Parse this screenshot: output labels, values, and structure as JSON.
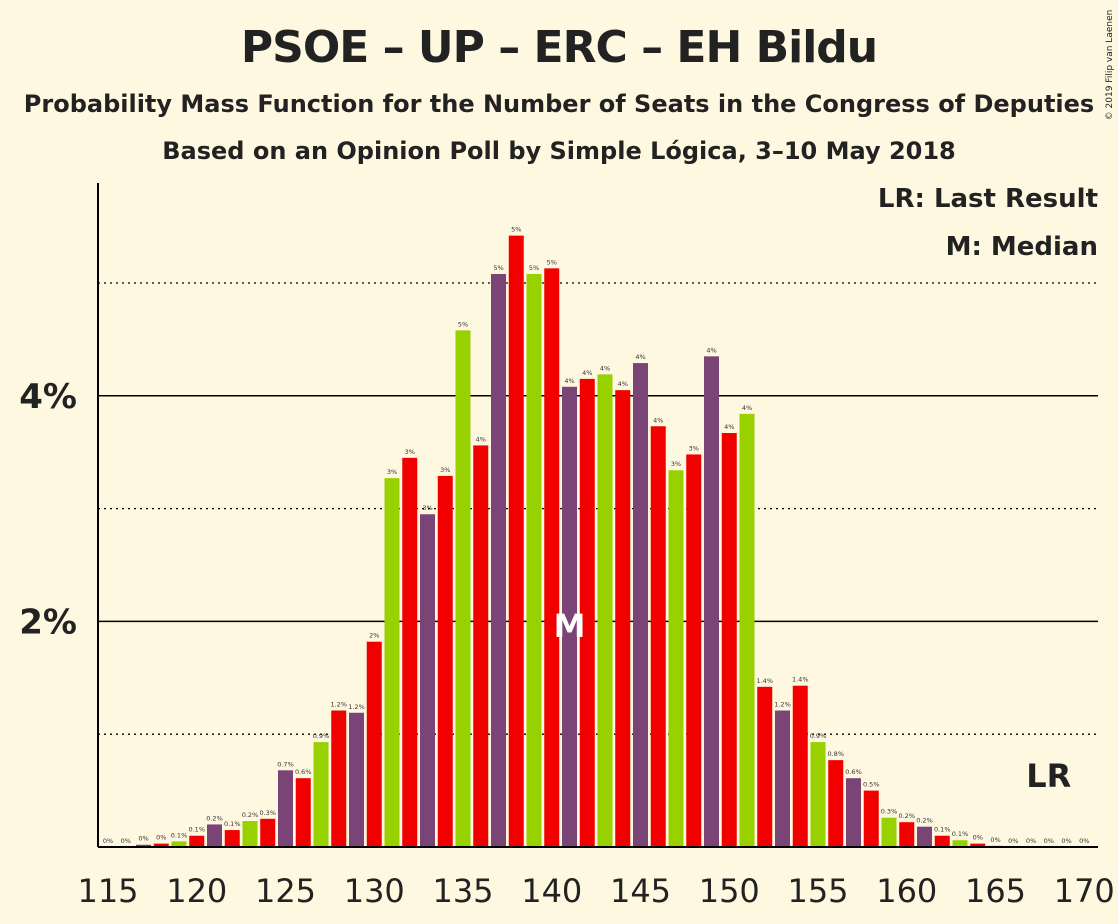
{
  "title": "PSOE – UP – ERC – EH Bildu",
  "subtitle": "Probability Mass Function for the Number of Seats in the Congress of Deputies",
  "subtitle2": "Based on an Opinion Poll by Simple Lógica, 3–10 May 2018",
  "copyright": "© 2019 Filip van Laenen",
  "legend": {
    "last_result": "LR: Last Result",
    "median": "M: Median"
  },
  "colors": {
    "background": "#FFF8E1",
    "purple": "#7A4477",
    "green": "#97D100",
    "red": "#F10000"
  },
  "chart_data": {
    "type": "bar",
    "x": [
      115,
      116,
      117,
      118,
      119,
      120,
      121,
      122,
      123,
      124,
      125,
      126,
      127,
      128,
      129,
      130,
      131,
      132,
      133,
      134,
      135,
      136,
      137,
      138,
      139,
      140,
      141,
      142,
      143,
      144,
      145,
      146,
      147,
      148,
      149,
      150,
      151,
      152,
      153,
      154,
      155,
      156,
      157,
      158,
      159,
      160,
      161,
      162,
      163,
      164,
      165,
      166,
      167,
      168,
      169,
      170
    ],
    "values": [
      0,
      0,
      0.02,
      0.03,
      0.05,
      0.1,
      0.2,
      0.15,
      0.23,
      0.25,
      0.68,
      0.61,
      0.93,
      1.21,
      1.19,
      1.82,
      3.27,
      3.45,
      2.95,
      3.29,
      4.58,
      3.56,
      5.08,
      5.42,
      5.08,
      5.13,
      4.08,
      4.15,
      4.19,
      4.05,
      4.29,
      3.73,
      3.34,
      3.48,
      4.35,
      3.67,
      3.84,
      1.42,
      1.21,
      1.43,
      0.93,
      0.77,
      0.61,
      0.5,
      0.26,
      0.22,
      0.18,
      0.1,
      0.06,
      0.03,
      0.01,
      0,
      0,
      0,
      0,
      0
    ],
    "labels": [
      "0%",
      "0%",
      "0%",
      "0%",
      "0.1%",
      "0.1%",
      "0.2%",
      "0.1%",
      "0.2%",
      "0.3%",
      "0.7%",
      "0.6%",
      "0.9%",
      "1.2%",
      "1.2%",
      "2%",
      "3%",
      "3%",
      "3%",
      "3%",
      "5%",
      "4%",
      "5%",
      "5%",
      "5%",
      "5%",
      "4%",
      "4%",
      "4%",
      "4%",
      "4%",
      "4%",
      "3%",
      "3%",
      "4%",
      "4%",
      "4%",
      "1.4%",
      "1.2%",
      "1.4%",
      "0.9%",
      "0.8%",
      "0.6%",
      "0.5%",
      "0.3%",
      "0.2%",
      "0.2%",
      "0.1%",
      "0.1%",
      "0%",
      "0%",
      "0%",
      "0%",
      "0%",
      "0%",
      "0%"
    ],
    "bar_colors": [
      "purple",
      "red",
      "purple",
      "red",
      "green",
      "red",
      "purple",
      "red",
      "green",
      "red",
      "purple",
      "red",
      "green",
      "red",
      "purple",
      "red",
      "green",
      "red",
      "purple",
      "red",
      "green",
      "red",
      "purple",
      "red",
      "green",
      "red",
      "purple",
      "red",
      "green",
      "red",
      "purple",
      "red",
      "green",
      "red",
      "purple",
      "red",
      "green",
      "red",
      "purple",
      "red",
      "green",
      "red",
      "purple",
      "red",
      "green",
      "red",
      "purple",
      "red",
      "green",
      "red",
      "purple",
      "red",
      "green",
      "red",
      "purple",
      "red"
    ],
    "x_ticks": [
      "115",
      "120",
      "125",
      "130",
      "135",
      "140",
      "145",
      "150",
      "155",
      "160",
      "165",
      "170"
    ],
    "y_ticks": [
      "2%",
      "4%"
    ],
    "ylim": [
      0,
      5.9
    ],
    "median_seat": 141,
    "median_label": "M",
    "last_result_seat": 168,
    "last_result_label": "LR",
    "grid": "solid at 2% and 4%, dotted at 1%, 3% and 5%"
  }
}
